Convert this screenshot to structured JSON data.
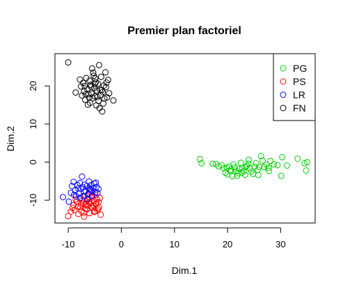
{
  "chart_data": {
    "type": "scatter",
    "title": "Premier plan factoriel",
    "xlabel": "Dim.1",
    "ylabel": "Dim.2",
    "xlim": [
      -12.5,
      36.5
    ],
    "ylim": [
      -16,
      28.5
    ],
    "x_ticks": [
      -10,
      0,
      10,
      20,
      30
    ],
    "y_ticks": [
      -10,
      0,
      10,
      20
    ],
    "marker": "open-circle",
    "grid": false,
    "legend_position": "top-right",
    "series": [
      {
        "name": "PG",
        "color": "#00cd00",
        "points": [
          [
            14.8,
            0.8
          ],
          [
            15.1,
            -0.3
          ],
          [
            17.2,
            -0.4
          ],
          [
            17.8,
            -0.5
          ],
          [
            18.3,
            -1.1
          ],
          [
            18.9,
            -0.8
          ],
          [
            19.3,
            -1.6
          ],
          [
            19.6,
            -2.8
          ],
          [
            20.0,
            -3.2
          ],
          [
            20.3,
            -1.2
          ],
          [
            20.6,
            -2.0
          ],
          [
            20.9,
            -3.7
          ],
          [
            21.1,
            -0.6
          ],
          [
            21.4,
            -1.4
          ],
          [
            21.7,
            -2.4
          ],
          [
            22.0,
            -2.9
          ],
          [
            22.2,
            -1.8
          ],
          [
            22.5,
            -0.2
          ],
          [
            22.8,
            -1.5
          ],
          [
            23.1,
            -2.4
          ],
          [
            23.3,
            -3.3
          ],
          [
            23.6,
            -1.0
          ],
          [
            23.9,
            -0.4
          ],
          [
            24.2,
            -1.6
          ],
          [
            24.5,
            -2.5
          ],
          [
            24.8,
            -3.1
          ],
          [
            25.1,
            -1.2
          ],
          [
            25.4,
            -0.3
          ],
          [
            25.7,
            -2.0
          ],
          [
            26.0,
            -1.3
          ],
          [
            26.3,
            1.6
          ],
          [
            26.6,
            0.4
          ],
          [
            26.9,
            -1.3
          ],
          [
            27.3,
            -0.6
          ],
          [
            27.7,
            -1.5
          ],
          [
            28.1,
            0.3
          ],
          [
            28.7,
            -0.6
          ],
          [
            29.4,
            -0.8
          ],
          [
            30.1,
            -3.6
          ],
          [
            30.3,
            1.3
          ],
          [
            31.2,
            -0.9
          ],
          [
            33.2,
            0.9
          ],
          [
            34.5,
            -0.3
          ],
          [
            34.8,
            -2.2
          ],
          [
            35.0,
            0.0
          ],
          [
            20.5,
            -2.4
          ],
          [
            21.8,
            -3.6
          ],
          [
            24.0,
            0.6
          ],
          [
            25.8,
            -3.4
          ],
          [
            19.9,
            -1.5
          ],
          [
            22.7,
            -2.8
          ],
          [
            23.4,
            -1.3
          ],
          [
            27.8,
            -2.3
          ]
        ]
      },
      {
        "name": "PS",
        "color": "#ff0000",
        "points": [
          [
            -10.0,
            -14.2
          ],
          [
            -9.5,
            -13.0
          ],
          [
            -9.0,
            -11.3
          ],
          [
            -8.8,
            -12.6
          ],
          [
            -8.4,
            -10.4
          ],
          [
            -8.1,
            -13.6
          ],
          [
            -7.9,
            -9.6
          ],
          [
            -7.7,
            -11.8
          ],
          [
            -7.5,
            -12.9
          ],
          [
            -7.2,
            -10.8
          ],
          [
            -7.0,
            -14.3
          ],
          [
            -6.9,
            -8.9
          ],
          [
            -6.7,
            -11.2
          ],
          [
            -6.5,
            -12.4
          ],
          [
            -6.3,
            -9.9
          ],
          [
            -6.1,
            -10.6
          ],
          [
            -6.0,
            -13.4
          ],
          [
            -5.8,
            -7.8
          ],
          [
            -5.7,
            -11.6
          ],
          [
            -5.5,
            -9.3
          ],
          [
            -5.4,
            -12.0
          ],
          [
            -5.2,
            -10.2
          ],
          [
            -5.1,
            -13.1
          ],
          [
            -4.9,
            -8.6
          ],
          [
            -4.8,
            -11.0
          ],
          [
            -4.6,
            -9.7
          ],
          [
            -4.5,
            -12.7
          ],
          [
            -4.3,
            -10.5
          ],
          [
            -4.2,
            -11.9
          ],
          [
            -4.0,
            -9.4
          ],
          [
            -3.9,
            -13.8
          ],
          [
            -5.9,
            -10.9
          ],
          [
            -6.4,
            -11.5
          ],
          [
            -7.4,
            -10.1
          ],
          [
            -8.2,
            -11.7
          ],
          [
            -6.8,
            -12.2
          ],
          [
            -5.6,
            -9.0
          ],
          [
            -4.4,
            -12.3
          ],
          [
            -7.1,
            -13.3
          ],
          [
            -6.2,
            -8.3
          ],
          [
            -5.3,
            -11.3
          ],
          [
            -8.6,
            -9.8
          ],
          [
            -9.2,
            -12.0
          ],
          [
            -4.7,
            -10.8
          ],
          [
            -6.6,
            -10.3
          ],
          [
            -5.0,
            -12.9
          ],
          [
            -7.6,
            -11.1
          ],
          [
            -6.0,
            -9.6
          ]
        ]
      },
      {
        "name": "LR",
        "color": "#0000ff",
        "points": [
          [
            -11.0,
            -9.2
          ],
          [
            -9.9,
            -10.4
          ],
          [
            -9.5,
            -8.1
          ],
          [
            -9.3,
            -6.3
          ],
          [
            -9.0,
            -5.2
          ],
          [
            -8.7,
            -7.4
          ],
          [
            -8.5,
            -9.0
          ],
          [
            -8.3,
            -6.0
          ],
          [
            -8.0,
            -8.3
          ],
          [
            -7.8,
            -5.5
          ],
          [
            -7.6,
            -7.0
          ],
          [
            -7.4,
            -3.8
          ],
          [
            -7.3,
            -6.6
          ],
          [
            -7.1,
            -8.9
          ],
          [
            -6.9,
            -5.9
          ],
          [
            -6.7,
            -7.6
          ],
          [
            -6.5,
            -6.3
          ],
          [
            -6.3,
            -8.5
          ],
          [
            -6.1,
            -5.1
          ],
          [
            -5.9,
            -7.2
          ],
          [
            -5.7,
            -6.0
          ],
          [
            -5.5,
            -8.8
          ],
          [
            -5.3,
            -6.8
          ],
          [
            -5.1,
            -5.6
          ],
          [
            -4.9,
            -7.9
          ],
          [
            -4.7,
            -6.5
          ],
          [
            -4.5,
            -8.1
          ],
          [
            -4.3,
            -7.0
          ],
          [
            -8.9,
            -8.6
          ],
          [
            -7.0,
            -7.8
          ],
          [
            -6.0,
            -6.9
          ],
          [
            -8.1,
            -6.9
          ],
          [
            -5.6,
            -7.5
          ],
          [
            -7.7,
            -9.3
          ],
          [
            -6.4,
            -9.6
          ],
          [
            -4.8,
            -5.4
          ]
        ]
      },
      {
        "name": "FN",
        "color": "#000000",
        "points": [
          [
            -10.0,
            26.2
          ],
          [
            -8.6,
            18.3
          ],
          [
            -7.8,
            21.7
          ],
          [
            -7.6,
            19.9
          ],
          [
            -7.4,
            17.5
          ],
          [
            -7.2,
            20.8
          ],
          [
            -7.0,
            18.6
          ],
          [
            -6.8,
            16.4
          ],
          [
            -6.6,
            22.1
          ],
          [
            -6.4,
            19.2
          ],
          [
            -6.2,
            17.9
          ],
          [
            -6.0,
            21.4
          ],
          [
            -5.9,
            15.6
          ],
          [
            -5.8,
            20.3
          ],
          [
            -5.6,
            18.0
          ],
          [
            -5.5,
            24.6
          ],
          [
            -5.4,
            16.8
          ],
          [
            -5.2,
            22.7
          ],
          [
            -5.1,
            19.5
          ],
          [
            -5.0,
            17.3
          ],
          [
            -4.8,
            21.0
          ],
          [
            -4.7,
            14.9
          ],
          [
            -4.6,
            18.8
          ],
          [
            -4.4,
            20.6
          ],
          [
            -4.3,
            16.1
          ],
          [
            -4.2,
            25.5
          ],
          [
            -4.0,
            19.0
          ],
          [
            -3.9,
            17.6
          ],
          [
            -3.8,
            22.4
          ],
          [
            -3.6,
            13.3
          ],
          [
            -3.5,
            18.4
          ],
          [
            -3.3,
            20.1
          ],
          [
            -3.2,
            16.7
          ],
          [
            -3.0,
            23.6
          ],
          [
            -2.9,
            19.7
          ],
          [
            -2.7,
            17.0
          ],
          [
            -2.5,
            21.6
          ],
          [
            -2.3,
            18.1
          ],
          [
            -1.5,
            16.2
          ],
          [
            -6.3,
            15.1
          ],
          [
            -5.3,
            23.5
          ],
          [
            -4.1,
            14.2
          ],
          [
            -6.9,
            20.0
          ],
          [
            -3.4,
            15.4
          ],
          [
            -4.9,
            22.0
          ],
          [
            -5.7,
            19.8
          ],
          [
            -6.1,
            16.9
          ],
          [
            -2.8,
            20.9
          ],
          [
            -3.7,
            18.9
          ],
          [
            -4.5,
            17.1
          ],
          [
            -5.0,
            20.5
          ],
          [
            -6.7,
            17.8
          ]
        ]
      }
    ]
  }
}
